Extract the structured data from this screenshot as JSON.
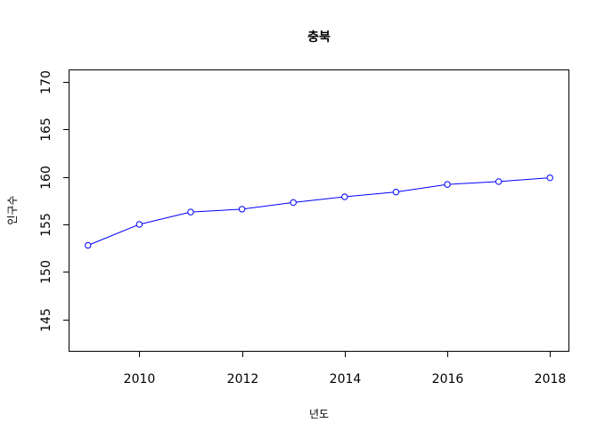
{
  "chart_data": {
    "type": "line",
    "title": "충북",
    "xlabel": "년도",
    "ylabel": "인구수",
    "x": [
      2009,
      2010,
      2011,
      2012,
      2013,
      2014,
      2015,
      2016,
      2017,
      2018
    ],
    "series": [
      {
        "values": [
          152.8,
          155.0,
          156.3,
          156.6,
          157.3,
          157.9,
          158.4,
          159.2,
          159.5,
          159.9
        ]
      }
    ],
    "xlim": [
      2008.64,
      2018.36
    ],
    "ylim": [
      141.7,
      171.2
    ],
    "x_ticks": [
      "2010",
      "2012",
      "2014",
      "2016",
      "2018"
    ],
    "y_ticks": [
      "145",
      "150",
      "155",
      "160",
      "165",
      "170"
    ],
    "grid": false,
    "line_color": "#0000ff",
    "marker": "open-circle"
  }
}
